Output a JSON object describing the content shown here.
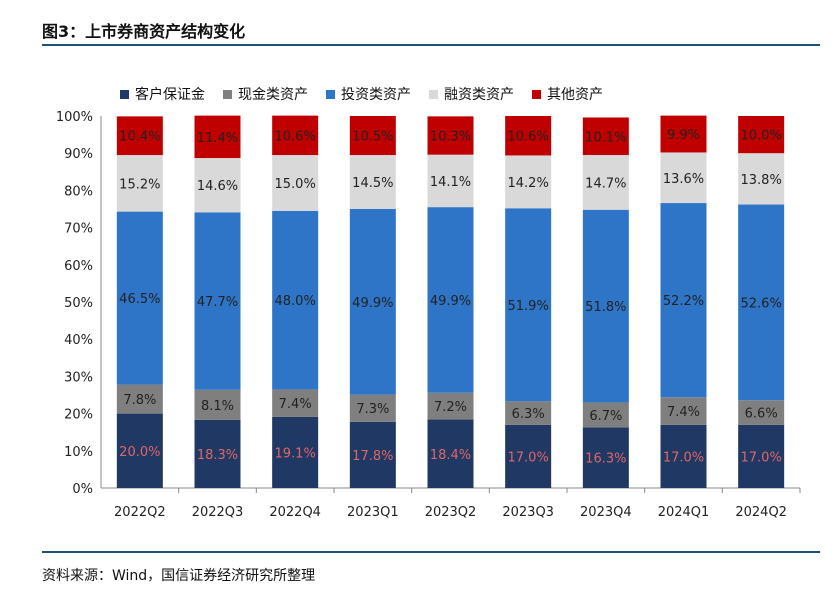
{
  "title": "图3：上市券商资产结构变化",
  "source": "资料来源：Wind，国信证券经济研究所整理",
  "chart_data": {
    "type": "bar",
    "stacked": true,
    "percent_stacked": true,
    "categories": [
      "2022Q2",
      "2022Q3",
      "2022Q4",
      "2023Q1",
      "2023Q2",
      "2023Q3",
      "2023Q4",
      "2024Q1",
      "2024Q2"
    ],
    "y_ticks": [
      "0%",
      "10%",
      "20%",
      "30%",
      "40%",
      "50%",
      "60%",
      "70%",
      "80%",
      "90%",
      "100%"
    ],
    "ylim": [
      0,
      100
    ],
    "legend_position": "top",
    "series": [
      {
        "name": "客户保证金",
        "color": "#1f3864",
        "label_color": "#e06666",
        "values": [
          20.0,
          18.3,
          19.1,
          17.8,
          18.4,
          17.0,
          16.3,
          17.0,
          17.0
        ],
        "labels": [
          "20.0%",
          "18.3%",
          "19.1%",
          "17.8%",
          "18.4%",
          "17.0%",
          "16.3%",
          "17.0%",
          "17.0%"
        ]
      },
      {
        "name": "现金类资产",
        "color": "#7f7f7f",
        "label_color": "#222222",
        "values": [
          7.8,
          8.1,
          7.4,
          7.3,
          7.2,
          6.3,
          6.7,
          7.4,
          6.6
        ],
        "labels": [
          "7.8%",
          "8.1%",
          "7.4%",
          "7.3%",
          "7.2%",
          "6.3%",
          "6.7%",
          "7.4%",
          "6.6%"
        ]
      },
      {
        "name": "投资类资产",
        "color": "#2e75c8",
        "label_color": "#222222",
        "values": [
          46.5,
          47.7,
          48.0,
          49.9,
          49.9,
          51.9,
          51.8,
          52.2,
          52.6
        ],
        "labels": [
          "46.5%",
          "47.7%",
          "48.0%",
          "49.9%",
          "49.9%",
          "51.9%",
          "51.8%",
          "52.2%",
          "52.6%"
        ]
      },
      {
        "name": "融资类资产",
        "color": "#d9d9d9",
        "label_color": "#222222",
        "values": [
          15.2,
          14.6,
          15.0,
          14.5,
          14.1,
          14.2,
          14.7,
          13.6,
          13.8
        ],
        "labels": [
          "15.2%",
          "14.6%",
          "15.0%",
          "14.5%",
          "14.1%",
          "14.2%",
          "14.7%",
          "13.6%",
          "13.8%"
        ]
      },
      {
        "name": "其他资产",
        "color": "#c00000",
        "label_color": "#222222",
        "values": [
          10.4,
          11.4,
          10.6,
          10.5,
          10.3,
          10.6,
          10.1,
          9.9,
          10.0
        ],
        "labels": [
          "10.4%",
          "11.4%",
          "10.6%",
          "10.5%",
          "10.3%",
          "10.6%",
          "10.1%",
          "9.9%",
          "10.0%"
        ]
      }
    ]
  }
}
